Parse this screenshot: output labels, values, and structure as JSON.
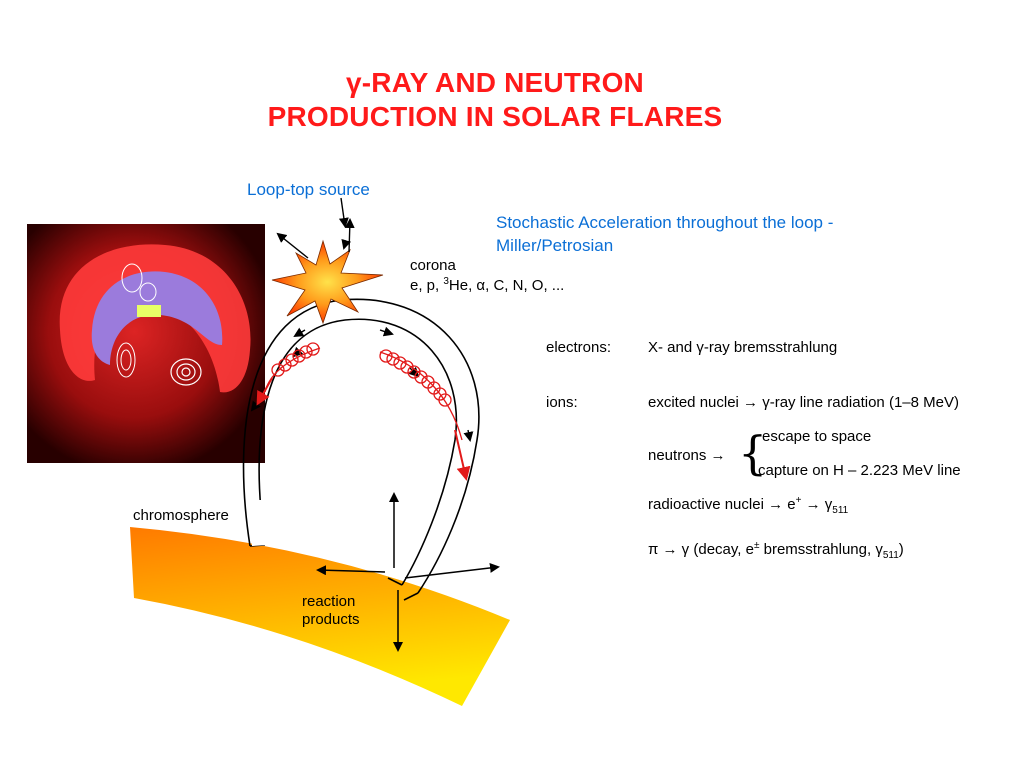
{
  "title": {
    "line1": "γ-RAY AND NEUTRON",
    "line2": "PRODUCTION IN SOLAR FLARES"
  },
  "annotations": {
    "loop_top": "Loop-top source",
    "stochastic_line1": "Stochastic Acceleration throughout the loop -",
    "stochastic_line2": "Miller/Petrosian"
  },
  "diagram": {
    "corona": "corona",
    "particles_pre": "e, p, ",
    "particles_sup": "3",
    "particles_post": "He, α, C, N, O, ...",
    "chromosphere": "chromosphere",
    "reaction_line1": "reaction",
    "reaction_line2": "products"
  },
  "processes": {
    "electrons_label": "electrons:",
    "electrons_text": "X- and γ-ray bremsstrahlung",
    "ions_label": "ions:",
    "ions_text": "excited nuclei → γ-ray line radiation (1–8 MeV)",
    "neutrons_label": "neutrons →",
    "brace": "{",
    "neutron_escape": "escape to space",
    "neutron_capture": "capture on H – 2.223 MeV line",
    "radioactive_pre": "radioactive nuclei → e",
    "radioactive_sup": "+",
    "radioactive_mid": " → γ",
    "radioactive_sub": "511",
    "pion_pre": "π → γ (decay, e",
    "pion_sup": "±",
    "pion_mid": " bremsstrahlung, γ",
    "pion_sub": "511",
    "pion_post": ")"
  },
  "colors": {
    "title": "#ff1a1a",
    "annotation": "#0b6fd6",
    "helix": "#e21a1a",
    "chromosphere_top": "#ff8a00",
    "chromosphere_bottom": "#ffe600"
  }
}
